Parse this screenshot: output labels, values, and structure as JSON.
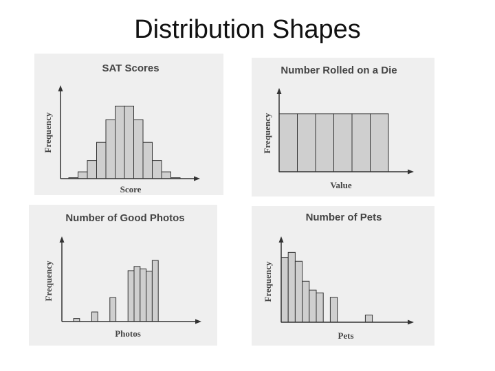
{
  "slide": {
    "title": "Distribution Shapes"
  },
  "chart_data": [
    {
      "type": "bar",
      "title": "SAT Scores",
      "xlabel": "Score",
      "ylabel": "Frequency",
      "values": [
        0.2,
        1.5,
        4,
        8,
        13,
        16,
        16,
        13,
        8,
        4,
        1.5,
        0.2
      ],
      "ylim": [
        0,
        20
      ]
    },
    {
      "type": "bar",
      "title": "Number Rolled on a Die",
      "xlabel": "Value",
      "ylabel": "Frequency",
      "values": [
        10,
        10,
        10,
        10,
        10,
        10
      ],
      "ylim": [
        0,
        14
      ]
    },
    {
      "type": "bar",
      "title": "Number of Good Photos",
      "xlabel": "Photos",
      "ylabel": "Frequency",
      "values": [
        0.5,
        0,
        0,
        1.6,
        0,
        0,
        4,
        0,
        0,
        8.5,
        9.2,
        8.8,
        8.4,
        10.2
      ],
      "ylim": [
        0,
        14
      ]
    },
    {
      "type": "bar",
      "title": "Number of Pets",
      "xlabel": "Pets",
      "ylabel": "Frequency",
      "values": [
        11.7,
        12.6,
        11.0,
        7.4,
        5.8,
        5.3,
        0,
        4.5,
        0,
        0,
        0,
        0,
        1.3
      ],
      "ylim": [
        0,
        15
      ]
    }
  ]
}
